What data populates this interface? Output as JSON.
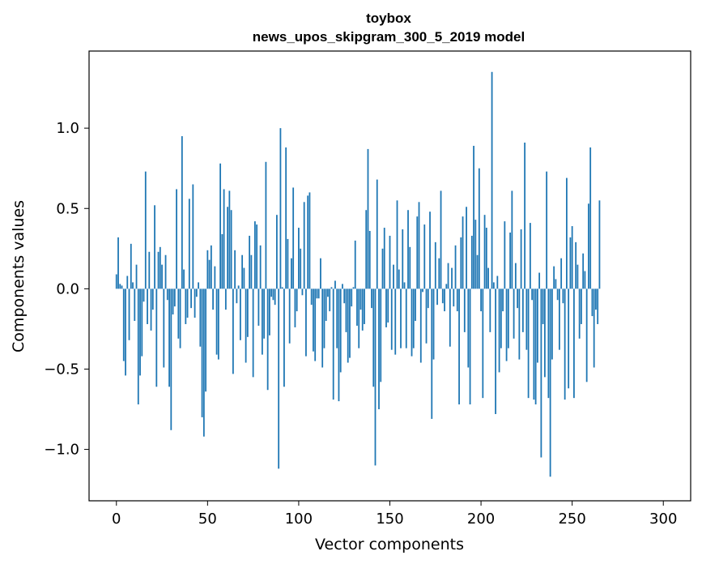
{
  "chart_data": {
    "type": "bar",
    "title": "toybox",
    "subtitle": "news_upos_skipgram_300_5_2019 model",
    "xlabel": "Vector components",
    "ylabel": "Components values",
    "xlim": [
      -15,
      315
    ],
    "ylim": [
      -1.32,
      1.48
    ],
    "xticks": [
      0,
      50,
      100,
      150,
      200,
      250,
      300
    ],
    "xtick_labels": [
      "0",
      "50",
      "100",
      "150",
      "200",
      "250",
      "300"
    ],
    "yticks": [
      -1.0,
      -0.5,
      0.0,
      0.5,
      1.0
    ],
    "ytick_labels": [
      "−1.0",
      "−0.5",
      "0.0",
      "0.5",
      "1.0"
    ],
    "bar_color": "#1f77b4",
    "grid": false,
    "values": [
      0.09,
      0.32,
      0.03,
      0.02,
      -0.45,
      -0.54,
      0.08,
      -0.32,
      0.28,
      0.04,
      -0.2,
      0.15,
      -0.72,
      -0.54,
      -0.42,
      -0.08,
      0.73,
      -0.22,
      0.23,
      -0.26,
      -0.13,
      0.52,
      -0.61,
      0.23,
      0.26,
      0.15,
      -0.49,
      0.21,
      -0.07,
      -0.61,
      -0.88,
      -0.16,
      -0.11,
      0.62,
      -0.31,
      -0.37,
      0.95,
      0.12,
      -0.22,
      -0.18,
      0.56,
      -0.12,
      0.65,
      -0.18,
      -0.05,
      0.04,
      -0.36,
      -0.8,
      -0.92,
      -0.64,
      0.24,
      0.18,
      0.27,
      -0.13,
      0.14,
      -0.41,
      -0.44,
      0.78,
      0.34,
      0.62,
      -0.13,
      0.51,
      0.61,
      0.49,
      -0.53,
      0.24,
      -0.09,
      0.02,
      -0.32,
      0.21,
      0.13,
      -0.46,
      -0.3,
      0.33,
      0.21,
      -0.55,
      0.42,
      0.4,
      -0.23,
      0.27,
      -0.41,
      -0.31,
      0.79,
      -0.63,
      -0.29,
      -0.05,
      -0.07,
      -0.1,
      0.46,
      -1.12,
      1.0,
      0.01,
      -0.61,
      0.88,
      0.31,
      -0.34,
      0.19,
      0.63,
      -0.24,
      -0.14,
      0.38,
      0.25,
      -0.04,
      0.54,
      -0.42,
      0.58,
      0.6,
      -0.1,
      -0.39,
      -0.45,
      -0.06,
      -0.06,
      0.19,
      -0.49,
      -0.37,
      -0.2,
      -0.05,
      -0.14,
      0.01,
      -0.69,
      0.05,
      -0.37,
      -0.7,
      -0.52,
      0.03,
      -0.09,
      -0.27,
      -0.46,
      -0.43,
      -0.11,
      0.01,
      0.3,
      -0.23,
      -0.37,
      -0.13,
      -0.26,
      -0.22,
      0.49,
      0.87,
      0.36,
      -0.12,
      -0.61,
      -1.1,
      0.68,
      -0.75,
      -0.58,
      0.25,
      0.38,
      -0.24,
      -0.21,
      0.33,
      -0.38,
      0.15,
      -0.41,
      0.55,
      0.12,
      -0.37,
      0.37,
      0.04,
      -0.37,
      0.49,
      0.26,
      -0.42,
      -0.37,
      -0.2,
      0.45,
      0.54,
      -0.46,
      -0.02,
      0.4,
      -0.34,
      -0.12,
      0.48,
      -0.81,
      -0.44,
      0.29,
      -0.1,
      0.19,
      0.61,
      -0.09,
      -0.14,
      0.03,
      0.16,
      -0.36,
      0.13,
      -0.11,
      0.27,
      -0.14,
      -0.72,
      0.32,
      0.45,
      -0.27,
      0.51,
      -0.49,
      -0.72,
      0.33,
      0.89,
      0.43,
      0.21,
      0.75,
      -0.14,
      -0.68,
      0.46,
      0.38,
      0.13,
      -0.27,
      1.35,
      0.04,
      -0.78,
      0.08,
      -0.52,
      -0.37,
      -0.14,
      0.42,
      -0.45,
      -0.37,
      0.35,
      0.61,
      -0.31,
      0.16,
      -0.12,
      -0.44,
      0.37,
      -0.27,
      0.91,
      -0.38,
      -0.68,
      0.41,
      -0.07,
      -0.69,
      -0.72,
      -0.46,
      0.1,
      -1.05,
      -0.22,
      -0.55,
      0.73,
      -0.68,
      -1.17,
      -0.44,
      0.14,
      0.06,
      -0.07,
      -0.38,
      0.19,
      -0.09,
      -0.69,
      0.69,
      -0.62,
      0.32,
      0.39,
      -0.68,
      0.29,
      0.15,
      -0.31,
      -0.22,
      0.22,
      0.11,
      -0.58,
      0.53,
      0.88,
      -0.17,
      -0.49,
      -0.13,
      -0.22,
      0.55
    ]
  }
}
